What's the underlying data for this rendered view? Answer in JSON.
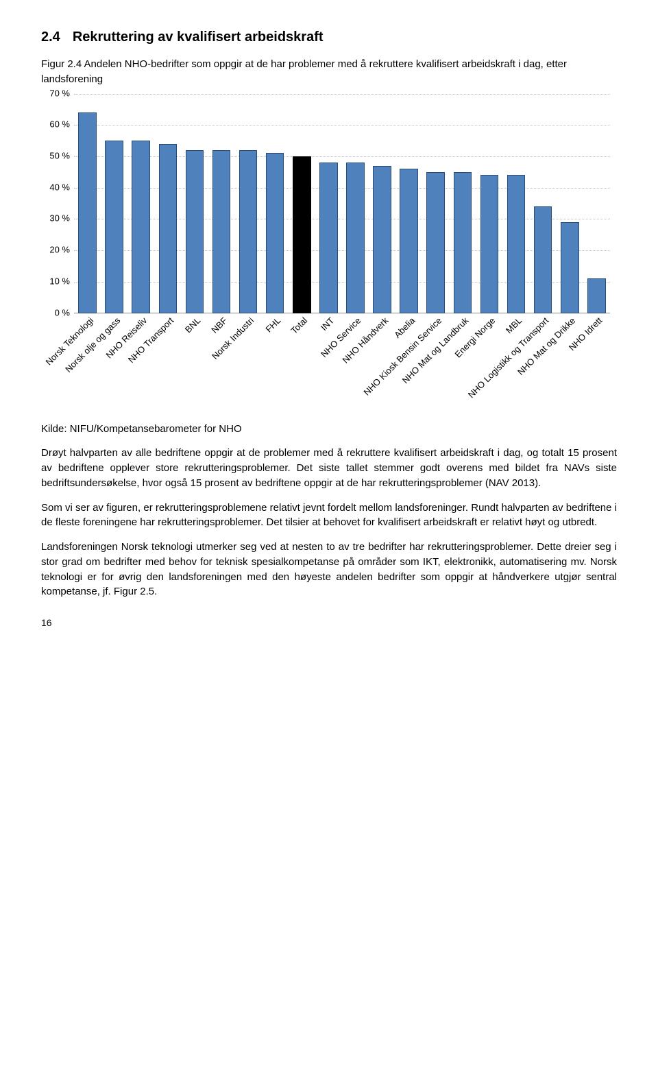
{
  "heading": {
    "num": "2.4",
    "text": "Rekruttering av kvalifisert arbeidskraft"
  },
  "figure_caption": "Figur 2.4 Andelen NHO-bedrifter som oppgir at de har problemer med å rekruttere kvalifisert arbeidskraft i dag, etter landsforening",
  "chart": {
    "type": "bar",
    "ylim": [
      0,
      70
    ],
    "ytick_step": 10,
    "ytick_suffix": " %",
    "background_color": "#ffffff",
    "grid_color": "#bfbfbf",
    "axis_color": "#888888",
    "label_fontsize": 13,
    "bar_width": 0.68,
    "default_bar_color": "#4f81bd",
    "default_border_color": "#2a4a77",
    "highlight_color": "#000000",
    "highlight_border": "#000000",
    "categories": [
      "Norsk Teknologi",
      "Norsk olje og gass",
      "NHO Reiseliv",
      "NHO Transport",
      "BNL",
      "NBF",
      "Norsk Industri",
      "FHL",
      "Total",
      "INT",
      "NHO Service",
      "NHO Håndverk",
      "Abelia",
      "NHO Kiosk Bensin Service",
      "NHO Mat og Landbruk",
      "Energi Norge",
      "MBL",
      "NHO Logistikk og Transport",
      "NHO Mat og Drikke",
      "NHO Idrett"
    ],
    "values": [
      64,
      55,
      55,
      54,
      52,
      52,
      52,
      51,
      50,
      48,
      48,
      47,
      46,
      45,
      45,
      44,
      44,
      34,
      29,
      11
    ],
    "highlight_index": 8
  },
  "source": "Kilde: NIFU/Kompetansebarometer for NHO",
  "paragraphs": [
    "Drøyt halvparten av alle bedriftene oppgir at de problemer med å rekruttere kvalifisert arbeidskraft i dag, og totalt 15 prosent av bedriftene opplever store rekrutteringsproblemer. Det siste tallet stemmer godt overens med bildet fra NAVs siste bedriftsundersøkelse, hvor også 15 prosent av bedriftene oppgir at de har rekrutteringsproblemer (NAV 2013).",
    "Som vi ser av figuren, er rekrutteringsproblemene relativt jevnt fordelt mellom landsforeninger. Rundt halvparten av bedriftene i de fleste foreningene har rekrutteringsproblemer. Det tilsier at behovet for kvalifisert arbeidskraft er relativt høyt og utbredt.",
    "Landsforeningen Norsk teknologi utmerker seg ved at nesten to av tre bedrifter har rekrutteringsproblemer. Dette dreier seg i stor grad om bedrifter med behov for teknisk spesialkompetanse på områder som IKT, elektronikk, automatisering mv. Norsk teknologi er for øvrig den landsforeningen med den høyeste andelen bedrifter som oppgir at håndverkere utgjør sentral kompetanse, jf. Figur 2.5."
  ],
  "page_number": "16"
}
